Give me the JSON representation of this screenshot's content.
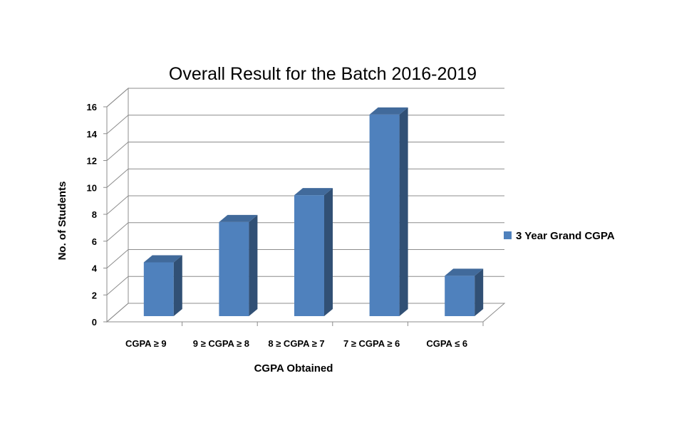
{
  "chart_data": {
    "type": "bar",
    "title": "Overall Result for the Batch 2016-2019",
    "xlabel": "CGPA Obtained",
    "ylabel": "No. of Students",
    "categories": [
      "CGPA ≥ 9",
      "9 ≥ CGPA ≥ 8",
      "8 ≥ CGPA ≥ 7",
      "7 ≥ CGPA ≥ 6",
      "CGPA ≤ 6"
    ],
    "series": [
      {
        "name": "3 Year Grand CGPA",
        "values": [
          4,
          7,
          9,
          15,
          3
        ],
        "color": "#4F81BD"
      }
    ],
    "ylim": [
      0,
      16
    ],
    "yticks": [
      "0",
      "2",
      "4",
      "6",
      "8",
      "10",
      "12",
      "14",
      "16"
    ],
    "grid": true,
    "legend": "right",
    "style": "3d-column"
  }
}
